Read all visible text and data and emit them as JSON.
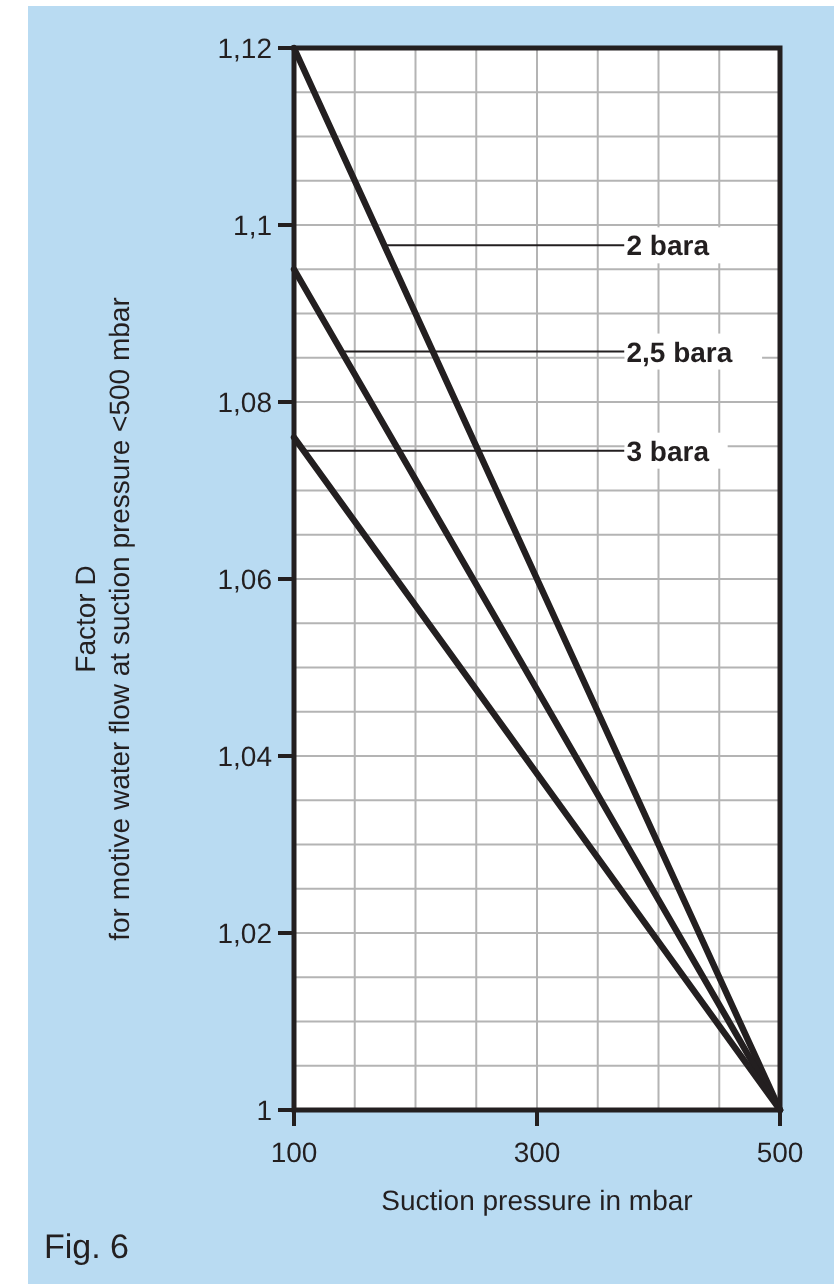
{
  "chart_data": {
    "type": "line",
    "xlabel": "Suction pressure in mbar",
    "ylabel": "Factor D\nfor motive water flow at suction pressure <500 mbar",
    "xlim": [
      100,
      500
    ],
    "xticks": [
      100,
      300,
      500
    ],
    "ylim": [
      1,
      1.12
    ],
    "yticks": [
      1,
      {
        "value": 1.02,
        "label": "1,02"
      },
      {
        "value": 1.04,
        "label": "1,04"
      },
      {
        "value": 1.06,
        "label": "1,06"
      },
      {
        "value": 1.08,
        "label": "1,08"
      },
      {
        "value": 1.1,
        "label": "1,1"
      },
      {
        "value": 1.12,
        "label": "1,12"
      }
    ],
    "x": [
      100,
      500
    ],
    "grid": true,
    "marker": "none",
    "line_style": "solid",
    "series": [
      {
        "color": "#231f20",
        "values": [
          1.12,
          1
        ]
      },
      {
        "color": "#231f20",
        "values": [
          1.095,
          1
        ]
      },
      {
        "color": "#231f20",
        "values": [
          1.076,
          1
        ]
      }
    ],
    "annotations": [
      {
        "text": "2 bara",
        "x": 176,
        "y": 1.0977
      },
      {
        "text": "2,5 bara",
        "x": 141,
        "y": 1.0857
      },
      {
        "text": "3 bara",
        "x": 108,
        "y": 1.0745
      },
      "Fig. 6"
    ]
  }
}
